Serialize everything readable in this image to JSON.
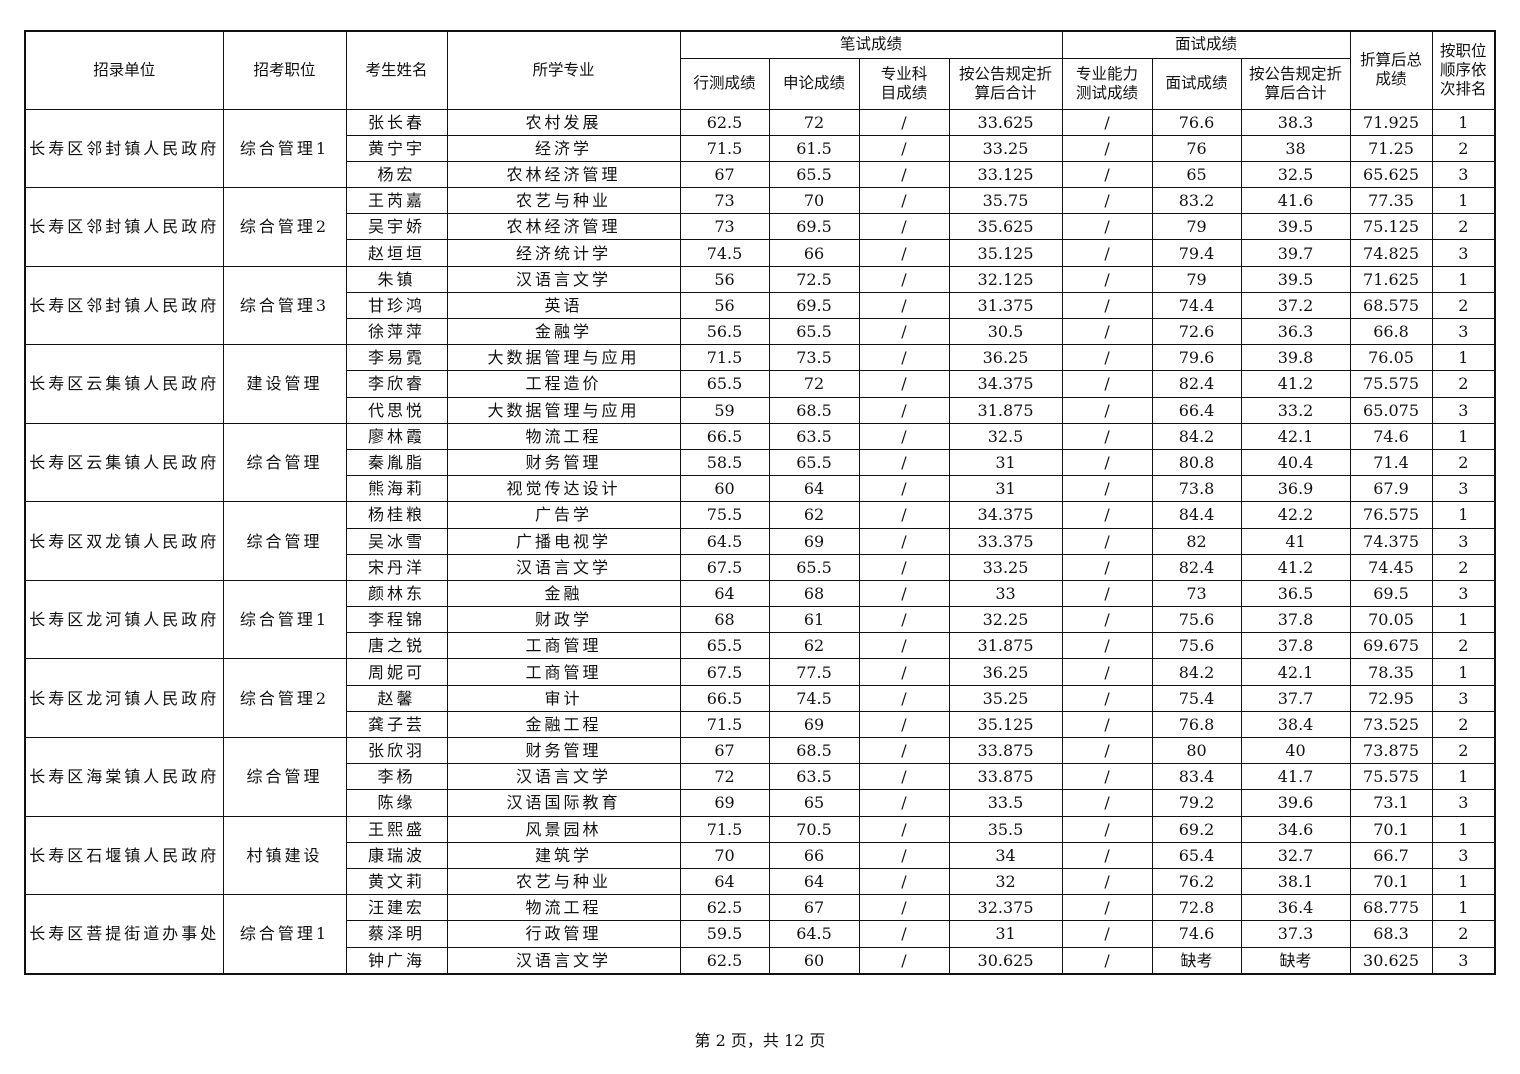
{
  "headers": {
    "unit": "招录单位",
    "position": "招考职位",
    "name": "考生姓名",
    "major": "所学专业",
    "written_group": "笔试成绩",
    "xingce": "行测成绩",
    "shenlun": "申论成绩",
    "professional_subject": "专业科目成绩",
    "written_converted": "按公告规定折算后合计",
    "interview_group": "面试成绩",
    "ability_test": "专业能力测试成绩",
    "interview_score": "面试成绩",
    "interview_converted": "按公告规定折算后合计",
    "total": "折算后总成绩",
    "rank": "按职位顺序依次排名"
  },
  "groups": [
    {
      "unit": "长寿区邻封镇人民政府",
      "position": "综合管理1",
      "rows": [
        [
          "张长春",
          "农村发展",
          "62.5",
          "72",
          "/",
          "33.625",
          "/",
          "76.6",
          "38.3",
          "71.925",
          "1"
        ],
        [
          "黄宁宇",
          "经济学",
          "71.5",
          "61.5",
          "/",
          "33.25",
          "/",
          "76",
          "38",
          "71.25",
          "2"
        ],
        [
          "杨宏",
          "农林经济管理",
          "67",
          "65.5",
          "/",
          "33.125",
          "/",
          "65",
          "32.5",
          "65.625",
          "3"
        ]
      ]
    },
    {
      "unit": "长寿区邻封镇人民政府",
      "position": "综合管理2",
      "rows": [
        [
          "王芮嘉",
          "农艺与种业",
          "73",
          "70",
          "/",
          "35.75",
          "/",
          "83.2",
          "41.6",
          "77.35",
          "1"
        ],
        [
          "吴宇娇",
          "农林经济管理",
          "73",
          "69.5",
          "/",
          "35.625",
          "/",
          "79",
          "39.5",
          "75.125",
          "2"
        ],
        [
          "赵垣垣",
          "经济统计学",
          "74.5",
          "66",
          "/",
          "35.125",
          "/",
          "79.4",
          "39.7",
          "74.825",
          "3"
        ]
      ]
    },
    {
      "unit": "长寿区邻封镇人民政府",
      "position": "综合管理3",
      "rows": [
        [
          "朱镇",
          "汉语言文学",
          "56",
          "72.5",
          "/",
          "32.125",
          "/",
          "79",
          "39.5",
          "71.625",
          "1"
        ],
        [
          "甘珍鸿",
          "英语",
          "56",
          "69.5",
          "/",
          "31.375",
          "/",
          "74.4",
          "37.2",
          "68.575",
          "2"
        ],
        [
          "徐萍萍",
          "金融学",
          "56.5",
          "65.5",
          "/",
          "30.5",
          "/",
          "72.6",
          "36.3",
          "66.8",
          "3"
        ]
      ]
    },
    {
      "unit": "长寿区云集镇人民政府",
      "position": "建设管理",
      "rows": [
        [
          "李易霓",
          "大数据管理与应用",
          "71.5",
          "73.5",
          "/",
          "36.25",
          "/",
          "79.6",
          "39.8",
          "76.05",
          "1"
        ],
        [
          "李欣睿",
          "工程造价",
          "65.5",
          "72",
          "/",
          "34.375",
          "/",
          "82.4",
          "41.2",
          "75.575",
          "2"
        ],
        [
          "代思悦",
          "大数据管理与应用",
          "59",
          "68.5",
          "/",
          "31.875",
          "/",
          "66.4",
          "33.2",
          "65.075",
          "3"
        ]
      ]
    },
    {
      "unit": "长寿区云集镇人民政府",
      "position": "综合管理",
      "rows": [
        [
          "廖林霞",
          "物流工程",
          "66.5",
          "63.5",
          "/",
          "32.5",
          "/",
          "84.2",
          "42.1",
          "74.6",
          "1"
        ],
        [
          "秦胤脂",
          "财务管理",
          "58.5",
          "65.5",
          "/",
          "31",
          "/",
          "80.8",
          "40.4",
          "71.4",
          "2"
        ],
        [
          "熊海莉",
          "视觉传达设计",
          "60",
          "64",
          "/",
          "31",
          "/",
          "73.8",
          "36.9",
          "67.9",
          "3"
        ]
      ]
    },
    {
      "unit": "长寿区双龙镇人民政府",
      "position": "综合管理",
      "rows": [
        [
          "杨桂粮",
          "广告学",
          "75.5",
          "62",
          "/",
          "34.375",
          "/",
          "84.4",
          "42.2",
          "76.575",
          "1"
        ],
        [
          "吴冰雪",
          "广播电视学",
          "64.5",
          "69",
          "/",
          "33.375",
          "/",
          "82",
          "41",
          "74.375",
          "3"
        ],
        [
          "宋丹洋",
          "汉语言文学",
          "67.5",
          "65.5",
          "/",
          "33.25",
          "/",
          "82.4",
          "41.2",
          "74.45",
          "2"
        ]
      ]
    },
    {
      "unit": "长寿区龙河镇人民政府",
      "position": "综合管理1",
      "rows": [
        [
          "颜林东",
          "金融",
          "64",
          "68",
          "/",
          "33",
          "/",
          "73",
          "36.5",
          "69.5",
          "3"
        ],
        [
          "李程锦",
          "财政学",
          "68",
          "61",
          "/",
          "32.25",
          "/",
          "75.6",
          "37.8",
          "70.05",
          "1"
        ],
        [
          "唐之锐",
          "工商管理",
          "65.5",
          "62",
          "/",
          "31.875",
          "/",
          "75.6",
          "37.8",
          "69.675",
          "2"
        ]
      ]
    },
    {
      "unit": "长寿区龙河镇人民政府",
      "position": "综合管理2",
      "rows": [
        [
          "周妮可",
          "工商管理",
          "67.5",
          "77.5",
          "/",
          "36.25",
          "/",
          "84.2",
          "42.1",
          "78.35",
          "1"
        ],
        [
          "赵馨",
          "审计",
          "66.5",
          "74.5",
          "/",
          "35.25",
          "/",
          "75.4",
          "37.7",
          "72.95",
          "3"
        ],
        [
          "龚子芸",
          "金融工程",
          "71.5",
          "69",
          "/",
          "35.125",
          "/",
          "76.8",
          "38.4",
          "73.525",
          "2"
        ]
      ]
    },
    {
      "unit": "长寿区海棠镇人民政府",
      "position": "综合管理",
      "rows": [
        [
          "张欣羽",
          "财务管理",
          "67",
          "68.5",
          "/",
          "33.875",
          "/",
          "80",
          "40",
          "73.875",
          "2"
        ],
        [
          "李杨",
          "汉语言文学",
          "72",
          "63.5",
          "/",
          "33.875",
          "/",
          "83.4",
          "41.7",
          "75.575",
          "1"
        ],
        [
          "陈缘",
          "汉语国际教育",
          "69",
          "65",
          "/",
          "33.5",
          "/",
          "79.2",
          "39.6",
          "73.1",
          "3"
        ]
      ]
    },
    {
      "unit": "长寿区石堰镇人民政府",
      "position": "村镇建设",
      "rows": [
        [
          "王熙盛",
          "风景园林",
          "71.5",
          "70.5",
          "/",
          "35.5",
          "/",
          "69.2",
          "34.6",
          "70.1",
          "1"
        ],
        [
          "康瑞波",
          "建筑学",
          "70",
          "66",
          "/",
          "34",
          "/",
          "65.4",
          "32.7",
          "66.7",
          "3"
        ],
        [
          "黄文莉",
          "农艺与种业",
          "64",
          "64",
          "/",
          "32",
          "/",
          "76.2",
          "38.1",
          "70.1",
          "1"
        ]
      ]
    },
    {
      "unit": "长寿区菩提街道办事处",
      "position": "综合管理1",
      "rows": [
        [
          "汪建宏",
          "物流工程",
          "62.5",
          "67",
          "/",
          "32.375",
          "/",
          "72.8",
          "36.4",
          "68.775",
          "1"
        ],
        [
          "蔡泽明",
          "行政管理",
          "59.5",
          "64.5",
          "/",
          "31",
          "/",
          "74.6",
          "37.3",
          "68.3",
          "2"
        ],
        [
          "钟广海",
          "汉语言文学",
          "62.5",
          "60",
          "/",
          "30.625",
          "/",
          "缺考",
          "缺考",
          "30.625",
          "3"
        ]
      ]
    }
  ],
  "footer": "第 2 页，共 12 页"
}
